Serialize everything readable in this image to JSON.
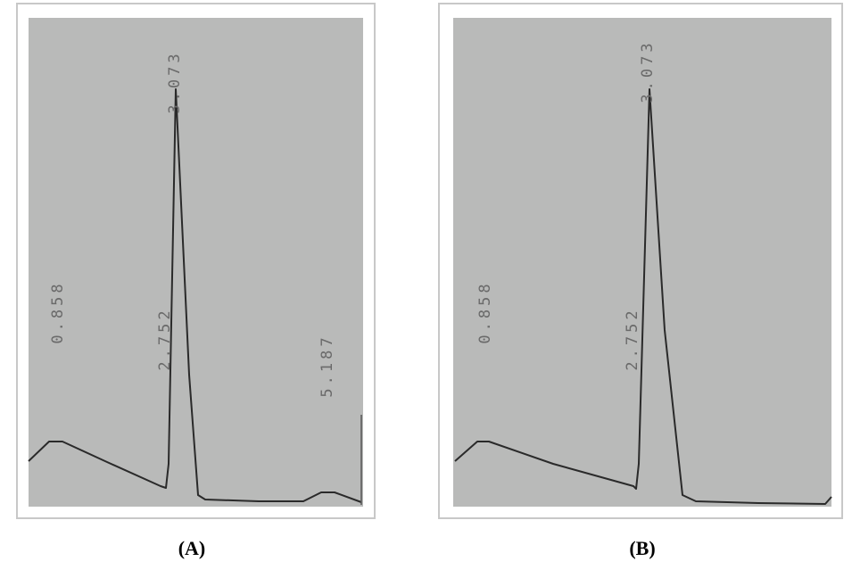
{
  "panels": [
    {
      "label": "(A)",
      "peaks": [
        "0.858",
        "2.752",
        "3.073",
        "5.187"
      ]
    },
    {
      "label": "(B)",
      "peaks": [
        "0.858",
        "2.752",
        "3.073"
      ]
    }
  ]
}
